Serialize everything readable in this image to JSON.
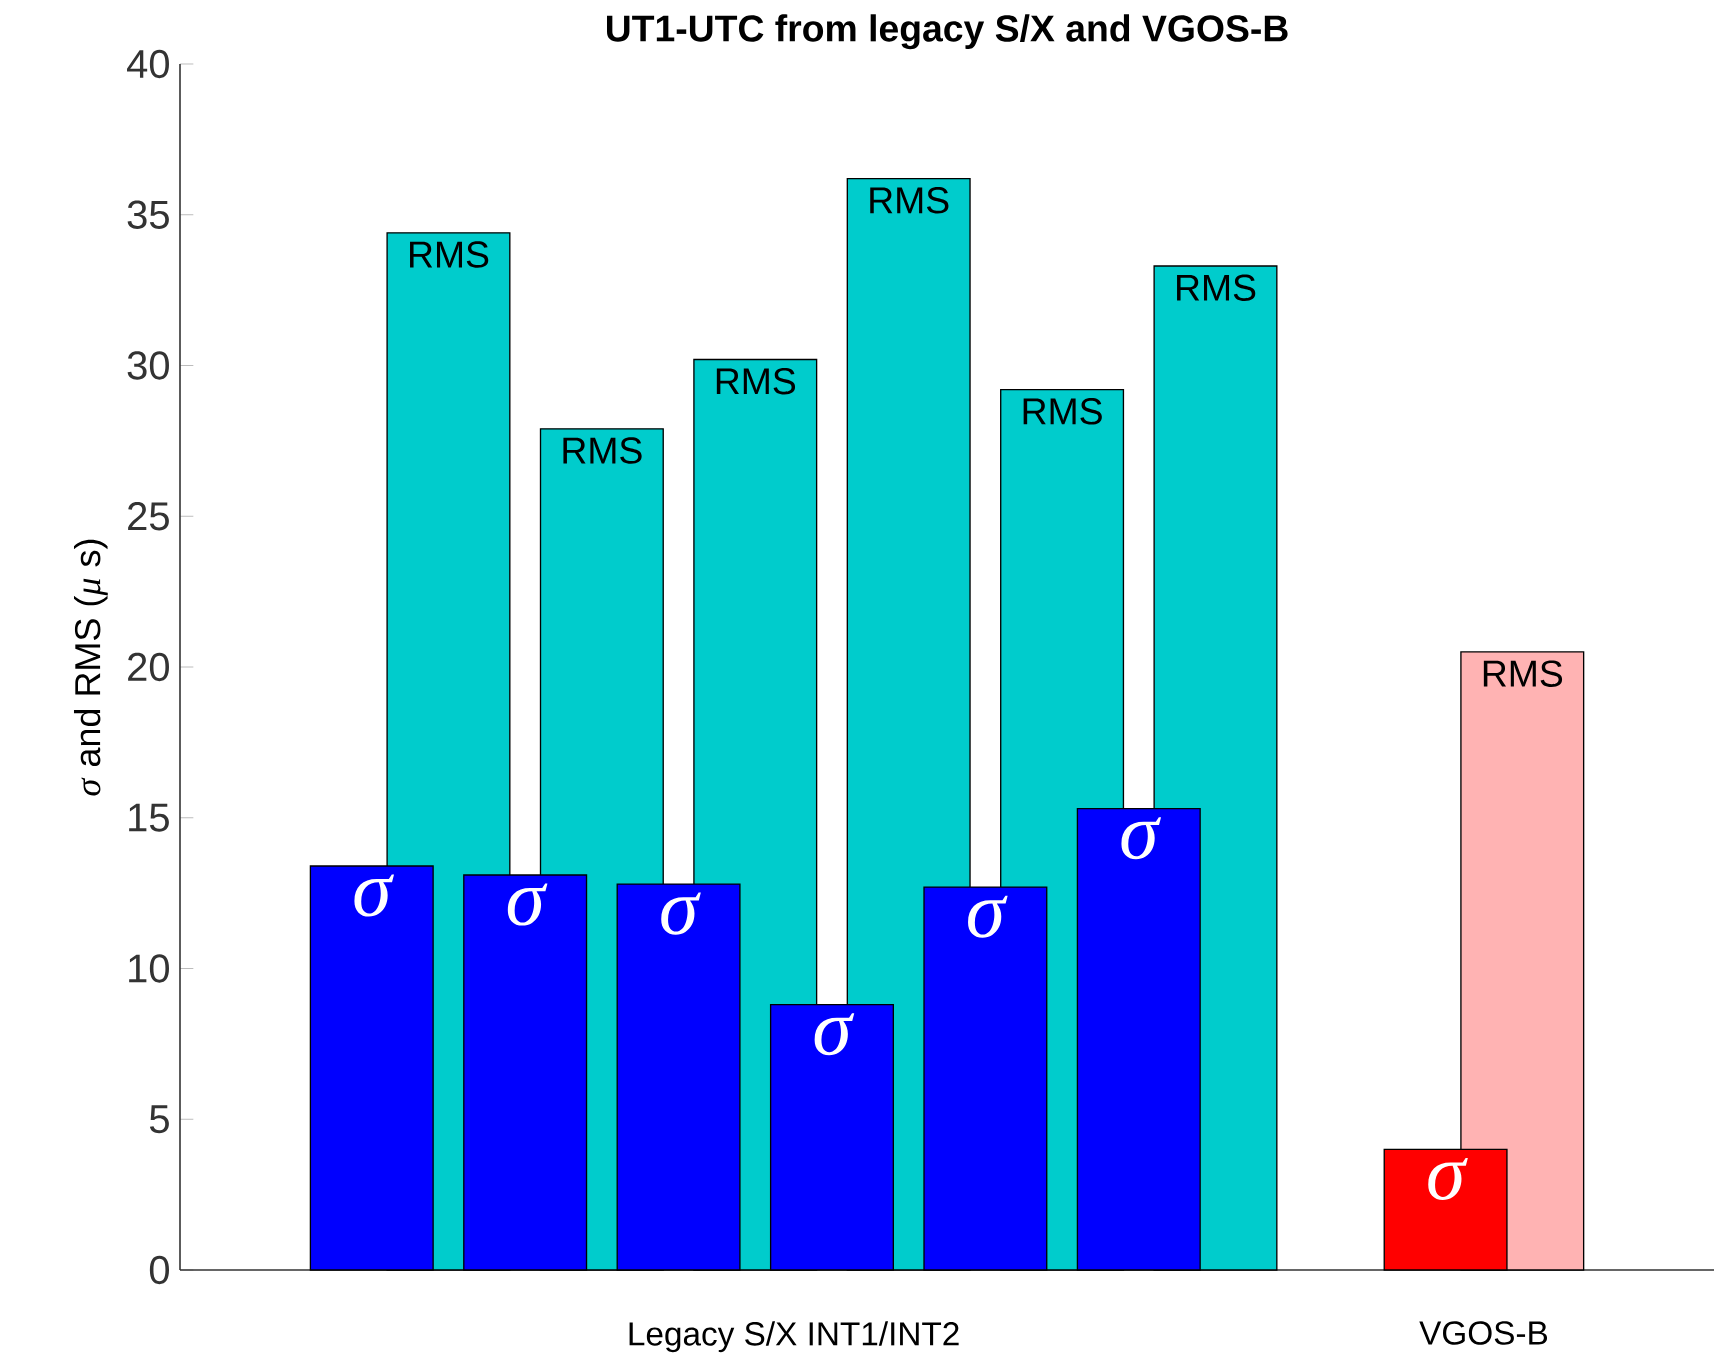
{
  "chart_data": {
    "type": "bar",
    "title": "UT1-UTC from legacy S/X and VGOS-B",
    "ylabel": "*σ* and RMS (*μ* s)",
    "categories": [
      null,
      null,
      null,
      null,
      null,
      null,
      null,
      null,
      null,
      null
    ],
    "ylim": [
      0,
      40
    ],
    "yticks": [
      0,
      5,
      10,
      15,
      20,
      25,
      30,
      35,
      40
    ],
    "annotations": [
      "Legacy S/X INT1/INT2",
      "VGOS-B"
    ],
    "series": [
      {
        "name": "σ",
        "colors": [
          null,
          "#0000ff",
          "#0000ff",
          "#0000ff",
          "#0000ff",
          "#0000ff",
          "#0000ff",
          null,
          "#ff0000",
          null
        ],
        "values": [
          null,
          13.4,
          13.1,
          12.8,
          8.8,
          12.7,
          15.3,
          null,
          4.0,
          null
        ]
      },
      {
        "name": "RMS",
        "colors": [
          null,
          "#00cccc",
          "#00cccc",
          "#00cccc",
          "#00cccc",
          "#00cccc",
          "#00cccc",
          null,
          "#ffb3b3",
          null
        ],
        "values": [
          null,
          34.4,
          27.9,
          30.2,
          36.2,
          29.2,
          33.3,
          null,
          20.5,
          null
        ]
      }
    ]
  }
}
